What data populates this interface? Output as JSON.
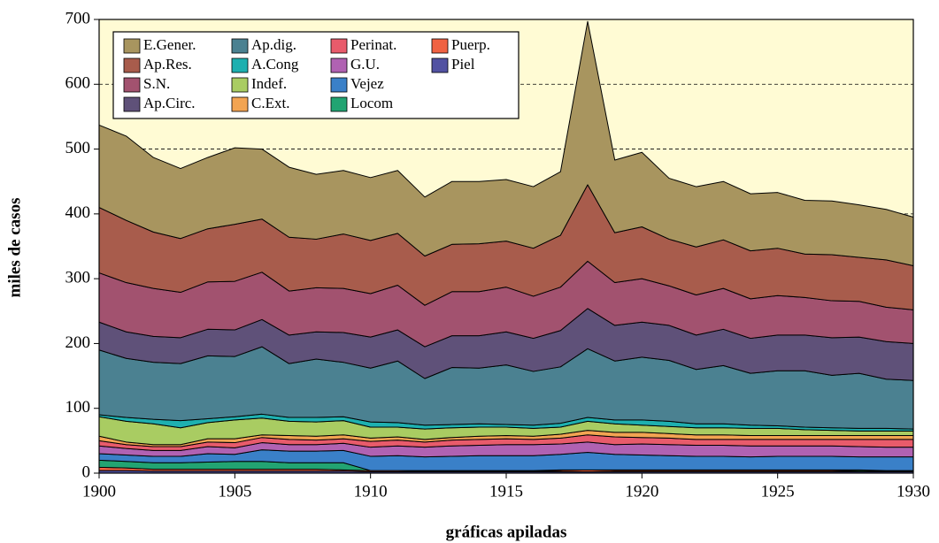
{
  "chart_data": {
    "type": "stacked_area",
    "xlabel": "gráficas apiladas",
    "ylabel": "miles de casos",
    "x": [
      1900,
      1901,
      1902,
      1903,
      1904,
      1905,
      1906,
      1907,
      1908,
      1909,
      1910,
      1911,
      1912,
      1913,
      1914,
      1915,
      1916,
      1917,
      1918,
      1919,
      1920,
      1921,
      1922,
      1923,
      1924,
      1925,
      1926,
      1927,
      1928,
      1929,
      1930
    ],
    "xlim": [
      1900,
      1930
    ],
    "xticks": [
      1900,
      1905,
      1910,
      1915,
      1920,
      1925,
      1930
    ],
    "ylim": [
      0,
      700
    ],
    "yticks": [
      0,
      100,
      200,
      300,
      400,
      500,
      600,
      700
    ],
    "grid": true,
    "background": "#fffbd4",
    "legend": "upper left",
    "series": [
      {
        "name": "E.Gener.",
        "color": "#a8955f",
        "values": [
          127,
          130,
          115,
          108,
          110,
          118,
          108,
          108,
          100,
          98,
          97,
          97,
          91,
          97,
          96,
          95,
          95,
          98,
          252,
          112,
          115,
          94,
          93,
          90,
          88,
          86,
          83,
          83,
          81,
          78,
          75
        ]
      },
      {
        "name": "Ap.Res.",
        "color": "#a85c4c",
        "values": [
          101,
          96,
          87,
          83,
          82,
          88,
          82,
          83,
          75,
          84,
          82,
          80,
          76,
          73,
          74,
          71,
          74,
          80,
          118,
          77,
          80,
          72,
          74,
          75,
          74,
          73,
          67,
          71,
          68,
          73,
          68
        ]
      },
      {
        "name": "S.N.",
        "color": "#a2526f",
        "values": [
          76,
          76,
          74,
          70,
          73,
          75,
          73,
          68,
          68,
          68,
          67,
          69,
          64,
          68,
          68,
          69,
          65,
          67,
          73,
          66,
          67,
          61,
          62,
          63,
          61,
          61,
          58,
          57,
          55,
          53,
          52
        ]
      },
      {
        "name": "Ap.Circ.",
        "color": "#5f5179",
        "values": [
          43,
          41,
          40,
          40,
          41,
          41,
          42,
          44,
          42,
          46,
          48,
          48,
          49,
          49,
          50,
          51,
          51,
          56,
          62,
          55,
          54,
          54,
          53,
          56,
          54,
          55,
          55,
          58,
          56,
          58,
          57
        ]
      },
      {
        "name": "Ap.dig.",
        "color": "#4b8191",
        "values": [
          100,
          91,
          88,
          88,
          97,
          93,
          104,
          83,
          90,
          84,
          83,
          95,
          72,
          88,
          86,
          92,
          83,
          87,
          106,
          91,
          97,
          94,
          84,
          90,
          80,
          85,
          87,
          81,
          85,
          76,
          75
        ]
      },
      {
        "name": "A.Cong",
        "color": "#1eb0b0",
        "values": [
          3,
          6,
          7,
          11,
          6,
          5,
          6,
          6,
          7,
          6,
          8,
          7,
          6,
          5,
          5,
          4,
          5,
          6,
          6,
          6,
          8,
          8,
          6,
          6,
          5,
          4,
          4,
          4,
          4,
          4,
          3
        ]
      },
      {
        "name": "Indef.",
        "color": "#a9cc62",
        "values": [
          30,
          32,
          32,
          26,
          25,
          29,
          26,
          22,
          22,
          22,
          17,
          15,
          16,
          15,
          14,
          13,
          12,
          11,
          14,
          13,
          11,
          11,
          11,
          11,
          11,
          11,
          9,
          8,
          7,
          7,
          7
        ]
      },
      {
        "name": "C.Ext.",
        "color": "#f2a452",
        "values": [
          7,
          4,
          3,
          3,
          5,
          6,
          4,
          6,
          6,
          6,
          5,
          5,
          4,
          4,
          5,
          5,
          5,
          6,
          7,
          7,
          8,
          7,
          7,
          7,
          6,
          6,
          6,
          6,
          6,
          6,
          6
        ]
      },
      {
        "name": "Perinat.",
        "color": "#e85b6b",
        "values": [
          8,
          6,
          6,
          6,
          7,
          8,
          8,
          8,
          7,
          7,
          9,
          9,
          8,
          9,
          9,
          9,
          8,
          9,
          11,
          12,
          10,
          10,
          9,
          9,
          10,
          10,
          10,
          10,
          11,
          12,
          12
        ]
      },
      {
        "name": "G.U.",
        "color": "#b062b2",
        "values": [
          12,
          10,
          9,
          9,
          11,
          10,
          11,
          10,
          10,
          11,
          14,
          15,
          15,
          16,
          16,
          17,
          17,
          16,
          16,
          15,
          17,
          17,
          17,
          17,
          17,
          16,
          16,
          16,
          16,
          15,
          15
        ]
      },
      {
        "name": "Vejez",
        "color": "#3a80c8",
        "values": [
          10,
          10,
          10,
          10,
          13,
          11,
          18,
          18,
          18,
          19,
          22,
          23,
          21,
          22,
          23,
          23,
          23,
          24,
          27,
          24,
          23,
          22,
          21,
          21,
          20,
          21,
          21,
          21,
          20,
          21,
          21
        ]
      },
      {
        "name": "Locom",
        "color": "#22a472",
        "values": [
          11,
          10,
          10,
          10,
          11,
          12,
          12,
          10,
          10,
          11,
          0,
          0,
          1,
          1,
          1,
          1,
          1,
          1,
          0,
          1,
          1,
          1,
          1,
          1,
          1,
          1,
          1,
          1,
          2,
          1,
          1
        ]
      },
      {
        "name": "Puerp.",
        "color": "#f06242",
        "values": [
          5,
          4,
          3,
          3,
          3,
          3,
          3,
          3,
          3,
          2,
          2,
          2,
          1,
          1,
          1,
          1,
          1,
          2,
          3,
          2,
          2,
          2,
          2,
          2,
          2,
          2,
          2,
          2,
          1,
          1,
          1
        ]
      },
      {
        "name": "Piel",
        "color": "#5252a2",
        "values": [
          4,
          4,
          3,
          3,
          3,
          3,
          3,
          3,
          3,
          3,
          2,
          2,
          2,
          2,
          2,
          2,
          2,
          2,
          2,
          2,
          2,
          2,
          2,
          2,
          2,
          2,
          2,
          2,
          2,
          2,
          2
        ]
      }
    ]
  }
}
